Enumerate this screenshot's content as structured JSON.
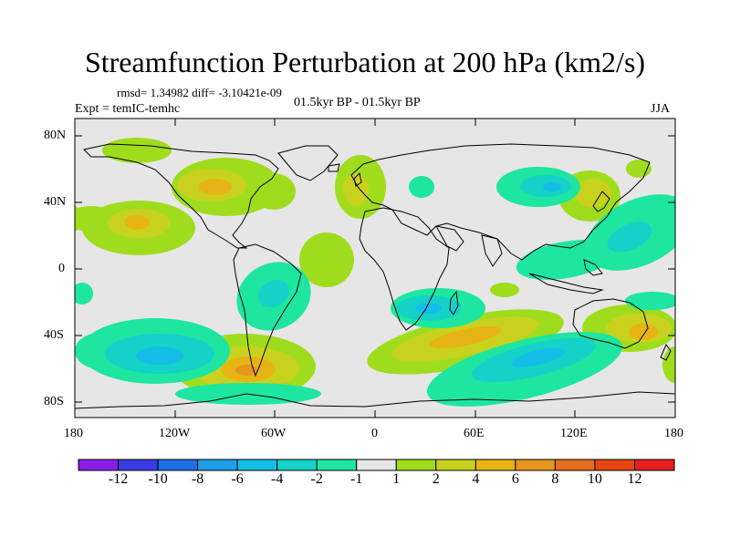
{
  "title": "Streamfunction Perturbation at 200 hPa (km2/s)",
  "stats": "rmsd= 1.34982 diff= -3.10421e-09",
  "experiment": "Expt = temIC-temhc",
  "period": "01.5kyr BP - 01.5kyr BP",
  "season": "JJA",
  "lat_ticks": [
    "80N",
    "40N",
    "0",
    "40S",
    "80S"
  ],
  "lon_ticks": [
    "180",
    "120W",
    "60W",
    "0",
    "60E",
    "120E",
    "180"
  ],
  "colorbar": {
    "labels": [
      "-12",
      "-10",
      "-8",
      "-6",
      "-4",
      "-2",
      "-1",
      "1",
      "2",
      "4",
      "6",
      "8",
      "10",
      "12"
    ],
    "colors": [
      "#8a1ee6",
      "#3c3ce6",
      "#1e6ee6",
      "#1e9ee6",
      "#14bee6",
      "#14d2c8",
      "#1ee6a0",
      "#e6e6e6",
      "#a0dc1e",
      "#c8d21e",
      "#e6b414",
      "#e6961e",
      "#e66e1e",
      "#e64614",
      "#e61e1e"
    ]
  },
  "colors": {
    "background": "#e6e6e6",
    "land_outline": "#000000"
  }
}
